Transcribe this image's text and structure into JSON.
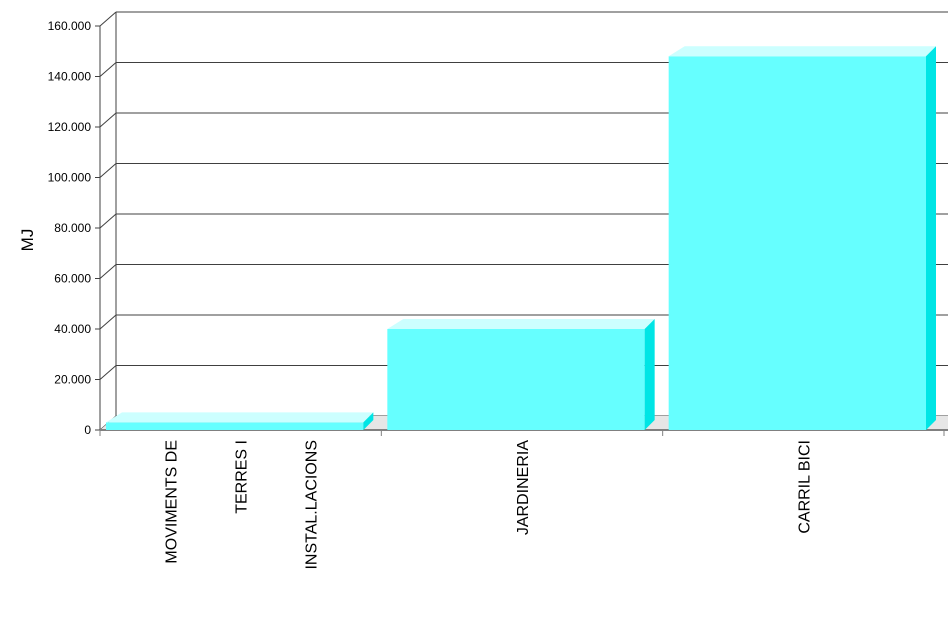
{
  "chart_data": {
    "type": "bar",
    "ylabel": "MJ",
    "xlabel": "",
    "ylim": [
      0,
      160000
    ],
    "yticks": [
      0,
      20000,
      40000,
      60000,
      80000,
      100000,
      120000,
      140000,
      160000
    ],
    "ytick_labels": [
      "0",
      "20.000",
      "40.000",
      "60.000",
      "80.000",
      "100.000",
      "120.000",
      "140.000",
      "160.000"
    ],
    "grid": true,
    "categories": [
      {
        "lines": [
          "MOVIMENTS DE",
          "TERRES I",
          "INSTAL.LACIONS"
        ]
      },
      {
        "lines": [
          "JARDINERIA"
        ]
      },
      {
        "lines": [
          "CARRIL BICI"
        ]
      }
    ],
    "values": [
      3000,
      40000,
      148000
    ],
    "colors": {
      "bar_front": "#66ffff",
      "bar_top": "#ccffff",
      "bar_side": "#00e5e5",
      "grid": "#404040",
      "axis": "#808080"
    }
  }
}
